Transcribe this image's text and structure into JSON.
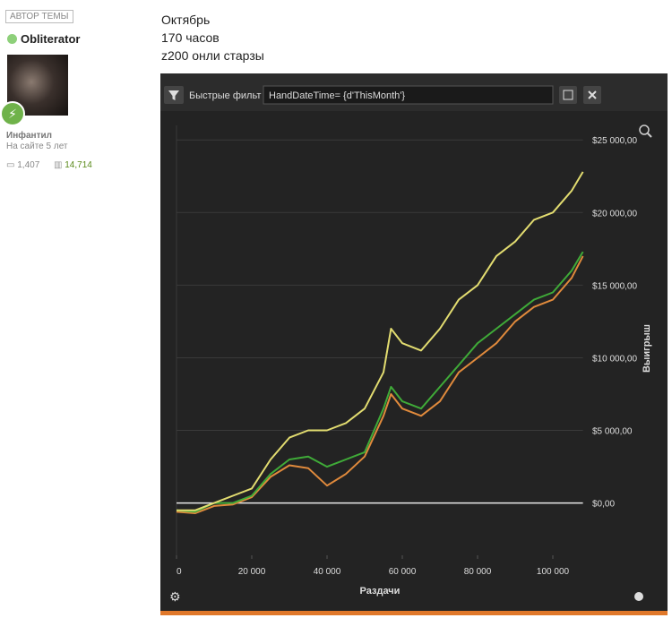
{
  "post": {
    "author_badge": "АВТОР ТЕМЫ",
    "user": "Obliterator",
    "rank": "Инфантил",
    "tenure": "На сайте 5 лет",
    "posts": "1,407",
    "reputation": "14,714",
    "lines": [
      "Октябрь",
      "170 часов",
      "z200 онли старзы"
    ]
  },
  "chart_data": {
    "type": "line",
    "filter_label": "Быстрые фильт",
    "filter_text": "HandDateTime= {d'ThisMonth'}",
    "x_label": "Раздачи",
    "y_label": "Выигрыш",
    "xlim": [
      0,
      108000
    ],
    "ylim": [
      -3600,
      26000
    ],
    "xticks": [
      0,
      {
        "value": 20000,
        "label": "20 000"
      },
      {
        "value": 40000,
        "label": "40 000"
      },
      {
        "value": 60000,
        "label": "60 000"
      },
      {
        "value": 80000,
        "label": "80 000"
      },
      {
        "value": 100000,
        "label": "100 000"
      }
    ],
    "yticks": [
      {
        "value": 0,
        "label": "$0,00"
      },
      {
        "value": 5000,
        "label": "$5 000,00"
      },
      {
        "value": 10000,
        "label": "$10 000,00"
      },
      {
        "value": 15000,
        "label": "$15 000,00"
      },
      {
        "value": 20000,
        "label": "$20 000,00"
      },
      {
        "value": 25000,
        "label": "$25 000,00"
      }
    ],
    "grid": true,
    "x": [
      0,
      5000,
      10000,
      15000,
      20000,
      25000,
      30000,
      35000,
      40000,
      45000,
      50000,
      55000,
      57000,
      60000,
      65000,
      70000,
      75000,
      80000,
      85000,
      90000,
      95000,
      100000,
      105000,
      108000
    ],
    "series": [
      {
        "color": "#e08a3c",
        "values": [
          -600,
          -700,
          -200,
          -100,
          400,
          1800,
          2600,
          2400,
          1200,
          2000,
          3200,
          6000,
          7500,
          6500,
          6000,
          7000,
          9000,
          10000,
          11000,
          12500,
          13500,
          14000,
          15500,
          17000
        ]
      },
      {
        "color": "#3faa38",
        "values": [
          -500,
          -600,
          0,
          0,
          500,
          2000,
          3000,
          3200,
          2500,
          3000,
          3500,
          6500,
          8000,
          7000,
          6500,
          8000,
          9500,
          11000,
          12000,
          13000,
          14000,
          14500,
          16000,
          17300
        ]
      },
      {
        "color": "#e2dc70",
        "values": [
          -500,
          -500,
          0,
          500,
          1000,
          3000,
          4500,
          5000,
          5000,
          5500,
          6500,
          9000,
          12000,
          11000,
          10500,
          12000,
          14000,
          15000,
          17000,
          18000,
          19500,
          20000,
          21500,
          22800
        ]
      }
    ]
  }
}
